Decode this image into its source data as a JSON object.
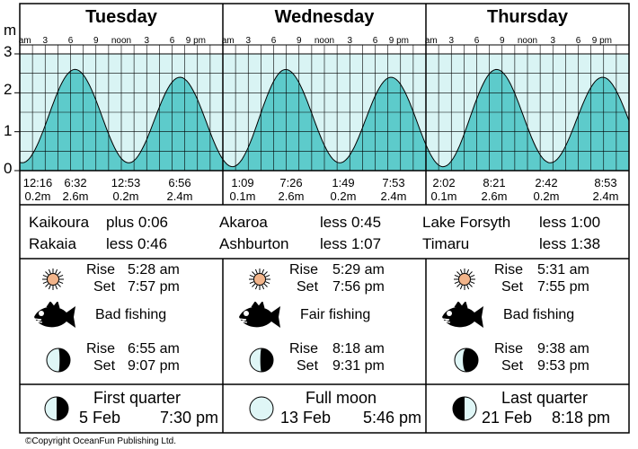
{
  "chart_data": {
    "type": "area",
    "title": "",
    "ylabel": "m",
    "ylim": [
      0,
      3
    ],
    "yticks": [
      "0",
      "1",
      "2",
      "3"
    ],
    "tick_labels": [
      "am",
      "3",
      "6",
      "9",
      "noon",
      "3",
      "6",
      "9 pm"
    ],
    "days": [
      {
        "name": "Tuesday",
        "tides": [
          {
            "time": "12:16",
            "height_label": "0.2m",
            "hour": 0.27,
            "height": 0.2
          },
          {
            "time": "6:32",
            "height_label": "2.6m",
            "hour": 6.53,
            "height": 2.6
          },
          {
            "time": "12:53",
            "height_label": "0.2m",
            "hour": 12.88,
            "height": 0.2
          },
          {
            "time": "6:56",
            "height_label": "2.4m",
            "hour": 18.93,
            "height": 2.4
          }
        ]
      },
      {
        "name": "Wednesday",
        "tides": [
          {
            "time": "1:09",
            "height_label": "0.1m",
            "hour": 1.15,
            "height": 0.1
          },
          {
            "time": "7:26",
            "height_label": "2.6m",
            "hour": 7.43,
            "height": 2.6
          },
          {
            "time": "1:49",
            "height_label": "0.2m",
            "hour": 13.82,
            "height": 0.2
          },
          {
            "time": "7:53",
            "height_label": "2.4m",
            "hour": 19.88,
            "height": 2.4
          }
        ]
      },
      {
        "name": "Thursday",
        "tides": [
          {
            "time": "2:02",
            "height_label": "0.1m",
            "hour": 2.03,
            "height": 0.1
          },
          {
            "time": "8:21",
            "height_label": "2.6m",
            "hour": 8.35,
            "height": 2.6
          },
          {
            "time": "2:42",
            "height_label": "0.2m",
            "hour": 14.7,
            "height": 0.2
          },
          {
            "time": "8:53",
            "height_label": "2.4m",
            "hour": 20.88,
            "height": 2.4
          }
        ]
      }
    ],
    "colors": {
      "fill": "#5dcbcb",
      "band": "#d9f4f4",
      "line": "#000000"
    }
  },
  "stations": [
    {
      "name": "Kaikoura",
      "offset": "plus 0:06"
    },
    {
      "name": "Akaroa",
      "offset": "less 0:45"
    },
    {
      "name": "Lake Forsyth",
      "offset": "less 1:00"
    },
    {
      "name": "Rakaia",
      "offset": "less 0:46"
    },
    {
      "name": "Ashburton",
      "offset": "less 1:07"
    },
    {
      "name": "Timaru",
      "offset": "less 1:38"
    }
  ],
  "almanac": [
    {
      "sun": {
        "rise_label": "Rise",
        "rise": "5:28 am",
        "set_label": "Set",
        "set": "7:57 pm"
      },
      "fishing": "Bad fishing",
      "moon": {
        "rise_label": "Rise",
        "rise": "6:55 am",
        "set_label": "Set",
        "set": "9:07 pm"
      },
      "phase": {
        "name": "First quarter",
        "date": "5 Feb",
        "time": "7:30 pm"
      }
    },
    {
      "sun": {
        "rise_label": "Rise",
        "rise": "5:29 am",
        "set_label": "Set",
        "set": "7:56 pm"
      },
      "fishing": "Fair fishing",
      "moon": {
        "rise_label": "Rise",
        "rise": "8:18 am",
        "set_label": "Set",
        "set": "9:31 pm"
      },
      "phase": {
        "name": "Full moon",
        "date": "13 Feb",
        "time": "5:46 pm"
      }
    },
    {
      "sun": {
        "rise_label": "Rise",
        "rise": "5:31 am",
        "set_label": "Set",
        "set": "7:55 pm"
      },
      "fishing": "Bad fishing",
      "moon": {
        "rise_label": "Rise",
        "rise": "9:38 am",
        "set_label": "Set",
        "set": "9:53 pm"
      },
      "phase": {
        "name": "Last quarter",
        "date": "21 Feb",
        "time": "8:18 pm"
      }
    }
  ],
  "icons": {
    "sun": "sun-icon",
    "fish": "fish-icon",
    "moon": "moon-icon"
  },
  "copyright": "©Copyright OceanFun Publishing Ltd."
}
